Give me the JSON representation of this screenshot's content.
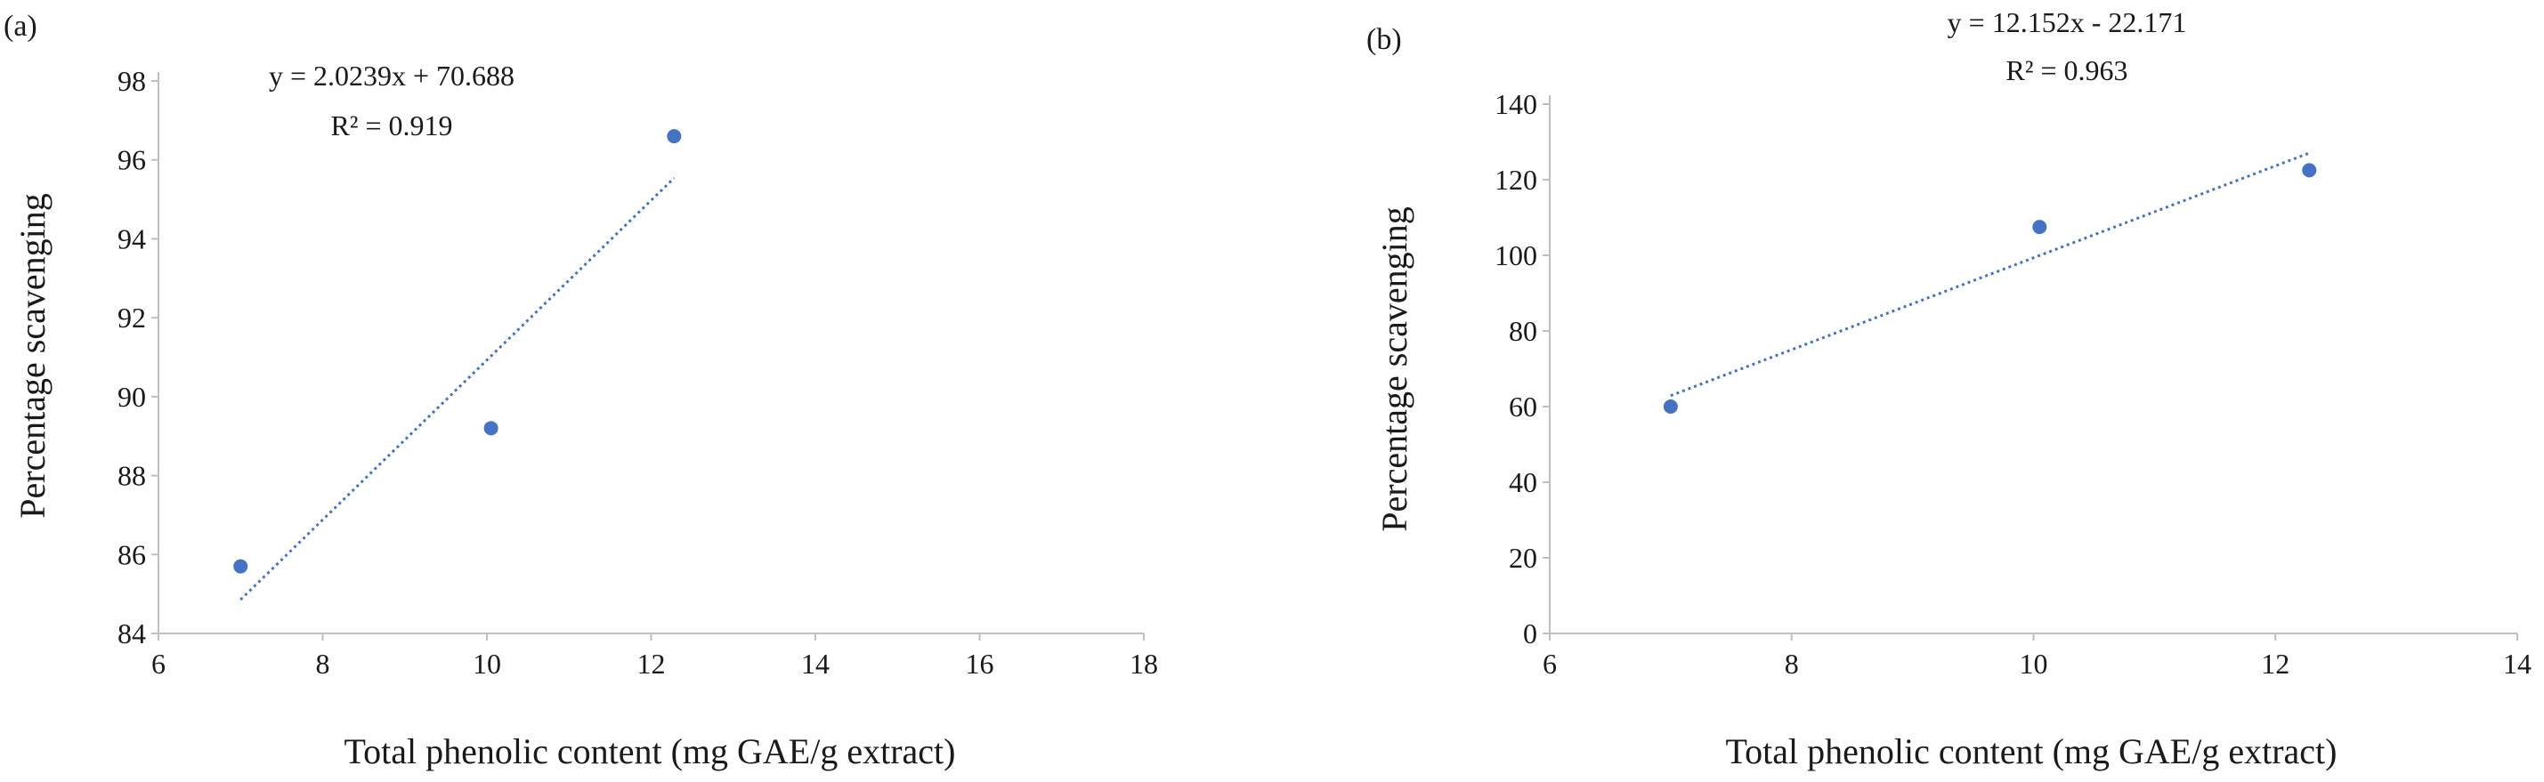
{
  "chart_data": [
    {
      "type": "scatter",
      "panel_label": "(a)",
      "xlabel": "Total phenolic content (mg GAE/g extract)",
      "ylabel": "Percentage scavenging",
      "xlim": [
        6,
        18
      ],
      "ylim": [
        84,
        98
      ],
      "xticks": [
        6,
        8,
        10,
        12,
        14,
        16,
        18
      ],
      "yticks": [
        84,
        86,
        88,
        90,
        92,
        94,
        96,
        98
      ],
      "grid": false,
      "series": [
        {
          "x": [
            7.0,
            10.05,
            12.28
          ],
          "y": [
            85.7,
            89.2,
            96.6
          ],
          "color": "#4472c4"
        }
      ],
      "trendline": {
        "kind": "linear",
        "slope": 2.0239,
        "intercept": 70.688,
        "x_range": [
          7.0,
          12.28
        ],
        "color": "#4472c4",
        "style": "dotted"
      },
      "annotations": [
        "y = 2.0239x + 70.688",
        "R² = 0.919"
      ]
    },
    {
      "type": "scatter",
      "panel_label": "(b)",
      "xlabel": "Total phenolic content (mg GAE/g extract)",
      "ylabel": "Percentage scavenging",
      "xlim": [
        6,
        14
      ],
      "ylim": [
        0,
        140
      ],
      "xticks": [
        6,
        8,
        10,
        12,
        14
      ],
      "yticks": [
        0,
        20,
        40,
        60,
        80,
        100,
        120,
        140
      ],
      "grid": false,
      "series": [
        {
          "x": [
            7.0,
            10.05,
            12.28
          ],
          "y": [
            60.0,
            107.5,
            122.5
          ],
          "color": "#4472c4"
        }
      ],
      "trendline": {
        "kind": "linear",
        "slope": 12.152,
        "intercept": -22.171,
        "x_range": [
          7.0,
          12.28
        ],
        "color": "#4472c4",
        "style": "dotted"
      },
      "annotations": [
        "y = 12.152x - 22.171",
        "R² = 0.963"
      ]
    }
  ]
}
